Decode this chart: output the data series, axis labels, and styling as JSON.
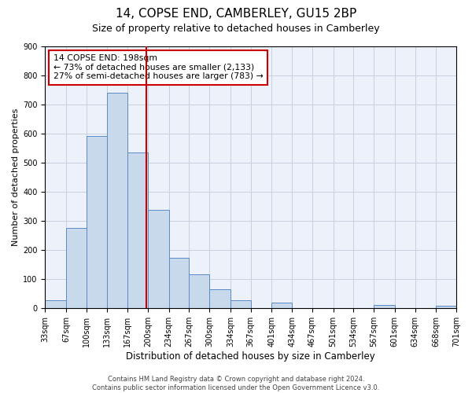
{
  "title": "14, COPSE END, CAMBERLEY, GU15 2BP",
  "subtitle": "Size of property relative to detached houses in Camberley",
  "xlabel": "Distribution of detached houses by size in Camberley",
  "ylabel": "Number of detached properties",
  "bin_edges": [
    33,
    67,
    100,
    133,
    167,
    200,
    234,
    267,
    300,
    334,
    367,
    401,
    434,
    467,
    501,
    534,
    567,
    601,
    634,
    668,
    701
  ],
  "bin_labels": [
    "33sqm",
    "67sqm",
    "100sqm",
    "133sqm",
    "167sqm",
    "200sqm",
    "234sqm",
    "267sqm",
    "300sqm",
    "334sqm",
    "367sqm",
    "401sqm",
    "434sqm",
    "467sqm",
    "501sqm",
    "534sqm",
    "567sqm",
    "601sqm",
    "634sqm",
    "668sqm",
    "701sqm"
  ],
  "counts": [
    27,
    275,
    593,
    740,
    535,
    338,
    175,
    118,
    66,
    27,
    0,
    20,
    0,
    0,
    0,
    0,
    12,
    0,
    0,
    8
  ],
  "bar_facecolor": "#c9d9ec",
  "bar_edgecolor": "#5b8ac7",
  "vline_x": 198,
  "vline_color": "#cc0000",
  "annotation_line1": "14 COPSE END: 198sqm",
  "annotation_line2": "← 73% of detached houses are smaller (2,133)",
  "annotation_line3": "27% of semi-detached houses are larger (783) →",
  "annotation_box_edgecolor": "#cc0000",
  "annotation_fontsize": 7.8,
  "ylim": [
    0,
    900
  ],
  "yticks": [
    0,
    100,
    200,
    300,
    400,
    500,
    600,
    700,
    800,
    900
  ],
  "grid_color": "#c8d0e0",
  "background_color": "#edf2fa",
  "footer_line1": "Contains HM Land Registry data © Crown copyright and database right 2024.",
  "footer_line2": "Contains public sector information licensed under the Open Government Licence v3.0.",
  "title_fontsize": 11,
  "subtitle_fontsize": 9,
  "ylabel_fontsize": 8,
  "xlabel_fontsize": 8.5,
  "tick_fontsize": 7
}
